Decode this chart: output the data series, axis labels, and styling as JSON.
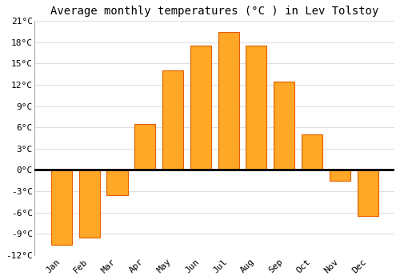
{
  "title": "Average monthly temperatures (°C ) in Lev Tolstoy",
  "months": [
    "Jan",
    "Feb",
    "Mar",
    "Apr",
    "May",
    "Jun",
    "Jul",
    "Aug",
    "Sep",
    "Oct",
    "Nov",
    "Dec"
  ],
  "values": [
    -10.5,
    -9.5,
    -3.5,
    6.5,
    14.0,
    17.5,
    19.5,
    17.5,
    12.5,
    5.0,
    -1.5,
    -6.5
  ],
  "bar_color": "#FFA726",
  "bar_edge_color": "#E65C00",
  "ylim": [
    -12,
    21
  ],
  "yticks": [
    -12,
    -9,
    -6,
    -3,
    0,
    3,
    6,
    9,
    12,
    15,
    18,
    21
  ],
  "ytick_labels": [
    "-12°C",
    "-9°C",
    "-6°C",
    "-3°C",
    "0°C",
    "3°C",
    "6°C",
    "9°C",
    "12°C",
    "15°C",
    "18°C",
    "21°C"
  ],
  "background_color": "#ffffff",
  "grid_color": "#dddddd",
  "zero_line_color": "#000000",
  "title_fontsize": 10,
  "tick_fontsize": 8,
  "bar_width": 0.75
}
